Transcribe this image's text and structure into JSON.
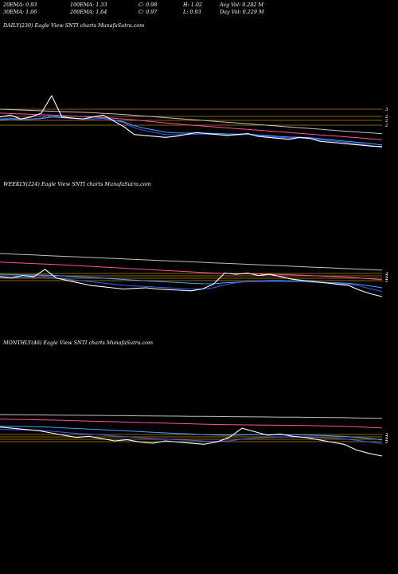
{
  "stats": {
    "row1": [
      "20EMA: 0.93",
      "100EMA: 1.33",
      "C: 0.98",
      "H: 1.02",
      "Avg Vol: 0.282  M"
    ],
    "row2": [
      "30EMA: 1.06",
      "200EMA: 1.64",
      "C: 0.97",
      "L: 0.93",
      "Day Vol: 0.229 M"
    ]
  },
  "colors": {
    "price": "#ffffff",
    "ema20": "#3a5cff",
    "ema30": "#4aa3ff",
    "ema100": "#ff4fa0",
    "ema200": "#c0c0c0",
    "level_line": "#b8860b"
  },
  "chart_data": [
    {
      "type": "line",
      "title": "DAILY(230) Eagle   View  SNTI charts MunafaSutra.com",
      "levels": [
        3,
        2,
        2,
        2
      ],
      "level_labels": [
        "3",
        "2",
        "2",
        "2"
      ],
      "series": [
        {
          "key": "price",
          "values": [
            2.5,
            2.6,
            2.4,
            2.5,
            2.7,
            3.6,
            2.5,
            2.45,
            2.4,
            2.5,
            2.6,
            2.3,
            2.0,
            1.6,
            1.55,
            1.5,
            1.45,
            1.5,
            1.6,
            1.7,
            1.65,
            1.6,
            1.55,
            1.6,
            1.65,
            1.5,
            1.45,
            1.4,
            1.35,
            1.45,
            1.4,
            1.25,
            1.2,
            1.15,
            1.1,
            1.05,
            1.0,
            0.98
          ]
        },
        {
          "key": "ema20",
          "values": [
            2.4,
            2.45,
            2.4,
            2.4,
            2.45,
            2.6,
            2.5,
            2.45,
            2.4,
            2.4,
            2.45,
            2.35,
            2.2,
            1.95,
            1.8,
            1.7,
            1.6,
            1.58,
            1.6,
            1.62,
            1.62,
            1.6,
            1.58,
            1.58,
            1.6,
            1.55,
            1.5,
            1.45,
            1.42,
            1.42,
            1.4,
            1.33,
            1.27,
            1.22,
            1.16,
            1.1,
            1.03,
            0.93
          ]
        },
        {
          "key": "ema30",
          "values": [
            2.35,
            2.4,
            2.38,
            2.38,
            2.42,
            2.5,
            2.47,
            2.43,
            2.4,
            2.4,
            2.42,
            2.36,
            2.25,
            2.05,
            1.92,
            1.82,
            1.72,
            1.68,
            1.67,
            1.68,
            1.67,
            1.65,
            1.63,
            1.62,
            1.62,
            1.58,
            1.55,
            1.5,
            1.47,
            1.46,
            1.44,
            1.38,
            1.33,
            1.28,
            1.23,
            1.18,
            1.12,
            1.06
          ]
        },
        {
          "key": "ema100",
          "values": [
            2.7,
            2.68,
            2.66,
            2.64,
            2.62,
            2.6,
            2.58,
            2.55,
            2.52,
            2.5,
            2.47,
            2.44,
            2.4,
            2.35,
            2.3,
            2.25,
            2.2,
            2.15,
            2.1,
            2.06,
            2.02,
            1.98,
            1.94,
            1.9,
            1.86,
            1.82,
            1.78,
            1.74,
            1.7,
            1.66,
            1.62,
            1.58,
            1.54,
            1.5,
            1.46,
            1.42,
            1.37,
            1.33
          ]
        },
        {
          "key": "ema200",
          "values": [
            2.9,
            2.88,
            2.86,
            2.84,
            2.82,
            2.8,
            2.78,
            2.76,
            2.74,
            2.72,
            2.69,
            2.66,
            2.63,
            2.59,
            2.55,
            2.51,
            2.47,
            2.43,
            2.39,
            2.35,
            2.31,
            2.27,
            2.23,
            2.19,
            2.15,
            2.11,
            2.07,
            2.03,
            1.99,
            1.95,
            1.91,
            1.87,
            1.83,
            1.79,
            1.75,
            1.71,
            1.68,
            1.64
          ]
        }
      ]
    },
    {
      "type": "line",
      "title": "WEEKLY(224) Eagle   View  SNTI charts MunafaSutra.com",
      "levels": [
        3,
        2,
        2,
        2
      ],
      "level_labels": [
        "3",
        "2",
        "2",
        "2"
      ],
      "series": [
        {
          "key": "price",
          "values": [
            2.6,
            2.5,
            2.7,
            2.6,
            3.2,
            2.5,
            2.3,
            2.1,
            1.9,
            1.8,
            1.7,
            1.6,
            1.65,
            1.7,
            1.6,
            1.55,
            1.5,
            1.45,
            1.6,
            2.0,
            2.9,
            2.8,
            2.9,
            2.7,
            2.8,
            2.6,
            2.4,
            2.3,
            2.2,
            2.1,
            2.0,
            1.9,
            1.5,
            1.2,
            0.98
          ]
        },
        {
          "key": "ema20",
          "values": [
            2.5,
            2.5,
            2.55,
            2.55,
            2.6,
            2.5,
            2.4,
            2.3,
            2.2,
            2.1,
            2.0,
            1.9,
            1.85,
            1.8,
            1.75,
            1.7,
            1.65,
            1.6,
            1.6,
            1.7,
            1.95,
            2.1,
            2.2,
            2.25,
            2.3,
            2.3,
            2.25,
            2.2,
            2.15,
            2.1,
            2.05,
            2.0,
            1.85,
            1.6,
            1.4
          ]
        },
        {
          "key": "ema30",
          "values": [
            2.8,
            2.78,
            2.76,
            2.75,
            2.74,
            2.7,
            2.65,
            2.6,
            2.55,
            2.5,
            2.44,
            2.38,
            2.32,
            2.27,
            2.22,
            2.17,
            2.12,
            2.07,
            2.03,
            2.02,
            2.1,
            2.15,
            2.2,
            2.22,
            2.24,
            2.24,
            2.22,
            2.2,
            2.17,
            2.14,
            2.1,
            2.06,
            1.98,
            1.85,
            1.7
          ]
        },
        {
          "key": "ema100",
          "values": [
            3.8,
            3.76,
            3.72,
            3.68,
            3.64,
            3.6,
            3.55,
            3.5,
            3.45,
            3.4,
            3.35,
            3.3,
            3.25,
            3.2,
            3.15,
            3.1,
            3.05,
            3.0,
            2.95,
            2.9,
            2.88,
            2.86,
            2.84,
            2.82,
            2.8,
            2.78,
            2.75,
            2.72,
            2.68,
            2.64,
            2.6,
            2.56,
            2.5,
            2.43,
            2.36
          ]
        },
        {
          "key": "ema200",
          "values": [
            4.5,
            4.46,
            4.42,
            4.38,
            4.34,
            4.3,
            4.26,
            4.22,
            4.18,
            4.14,
            4.1,
            4.06,
            4.02,
            3.98,
            3.94,
            3.9,
            3.86,
            3.82,
            3.78,
            3.74,
            3.7,
            3.66,
            3.62,
            3.58,
            3.54,
            3.5,
            3.46,
            3.42,
            3.38,
            3.34,
            3.3,
            3.26,
            3.22,
            3.18,
            3.14
          ]
        }
      ]
    },
    {
      "type": "line",
      "title": "MONTHLY(46) Eagle   View  SNTI charts MunafaSutra.com",
      "levels": [
        3,
        2,
        2,
        2
      ],
      "level_labels": [
        "3",
        "2",
        "2",
        "2"
      ],
      "series": [
        {
          "key": "price",
          "values": [
            3.5,
            3.4,
            3.3,
            3.2,
            3.0,
            2.8,
            2.6,
            2.7,
            2.5,
            2.3,
            2.4,
            2.2,
            2.1,
            2.3,
            2.2,
            2.1,
            2.0,
            2.2,
            2.6,
            3.4,
            3.1,
            2.8,
            2.9,
            2.7,
            2.6,
            2.4,
            2.2,
            2.0,
            1.5,
            1.2,
            0.98
          ]
        },
        {
          "key": "ema20",
          "values": [
            3.3,
            3.28,
            3.26,
            3.22,
            3.15,
            3.05,
            2.95,
            2.9,
            2.82,
            2.72,
            2.66,
            2.58,
            2.5,
            2.46,
            2.4,
            2.35,
            2.29,
            2.27,
            2.3,
            2.45,
            2.55,
            2.6,
            2.64,
            2.64,
            2.63,
            2.6,
            2.55,
            2.48,
            2.36,
            2.22,
            2.06
          ]
        },
        {
          "key": "ema30",
          "values": [
            3.6,
            3.58,
            3.56,
            3.53,
            3.49,
            3.44,
            3.38,
            3.33,
            3.28,
            3.22,
            3.17,
            3.11,
            3.05,
            3.0,
            2.95,
            2.9,
            2.85,
            2.81,
            2.79,
            2.82,
            2.84,
            2.84,
            2.84,
            2.83,
            2.81,
            2.78,
            2.74,
            2.69,
            2.61,
            2.51,
            2.39
          ]
        },
        {
          "key": "ema100",
          "values": [
            4.2,
            4.18,
            4.16,
            4.14,
            4.12,
            4.09,
            4.06,
            4.03,
            4.0,
            3.97,
            3.94,
            3.91,
            3.88,
            3.85,
            3.82,
            3.79,
            3.76,
            3.73,
            3.71,
            3.7,
            3.69,
            3.68,
            3.67,
            3.66,
            3.64,
            3.62,
            3.6,
            3.57,
            3.53,
            3.48,
            3.43
          ]
        },
        {
          "key": "ema200",
          "values": [
            4.6,
            4.59,
            4.58,
            4.57,
            4.56,
            4.55,
            4.54,
            4.53,
            4.52,
            4.51,
            4.5,
            4.49,
            4.48,
            4.47,
            4.46,
            4.45,
            4.44,
            4.43,
            4.42,
            4.41,
            4.4,
            4.39,
            4.38,
            4.37,
            4.36,
            4.35,
            4.34,
            4.33,
            4.31,
            4.29,
            4.27
          ]
        }
      ]
    }
  ]
}
